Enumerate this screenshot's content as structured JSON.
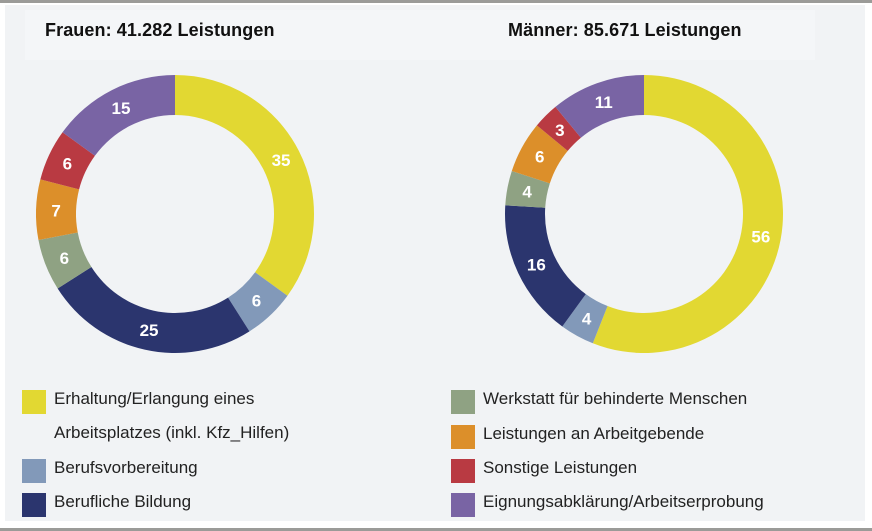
{
  "chart_data": [
    {
      "type": "pie",
      "variant": "donut",
      "title": "Frauen: 41.282 Leistungen",
      "categories": [
        "Erhaltung/Erlangung eines Arbeitsplatzes (inkl. Kfz_Hilfen)",
        "Berufsvorbereitung",
        "Berufliche Bildung",
        "Werkstatt für behinderte Menschen",
        "Leistungen an Arbeitgebende",
        "Sonstige Leistungen",
        "Eignungsabklärung/Arbeitserprobung"
      ],
      "values": [
        35,
        6,
        25,
        6,
        7,
        6,
        15
      ]
    },
    {
      "type": "pie",
      "variant": "donut",
      "title": "Männer: 85.671 Leistungen",
      "categories": [
        "Erhaltung/Erlangung eines Arbeitsplatzes (inkl. Kfz_Hilfen)",
        "Berufsvorbereitung",
        "Berufliche Bildung",
        "Werkstatt für behinderte Menschen",
        "Leistungen an Arbeitgebende",
        "Sonstige Leistungen",
        "Eignungsabklärung/Arbeitserprobung"
      ],
      "values": [
        56,
        4,
        16,
        4,
        6,
        3,
        11
      ]
    }
  ],
  "colors": [
    "#e2d832",
    "#8299b9",
    "#2b356e",
    "#8fa283",
    "#dc8f2a",
    "#b93a42",
    "#7964a4"
  ],
  "legend": {
    "placement": "bottom",
    "items": [
      {
        "label": "Erhaltung/Erlangung eines Arbeitsplatzes (inkl. Kfz_Hilfen)"
      },
      {
        "label": "Berufsvorbereitung"
      },
      {
        "label": "Berufliche Bildung"
      },
      {
        "label": "Werkstatt für behinderte Menschen"
      },
      {
        "label": "Leistungen an Arbeitgebende"
      },
      {
        "label": "Sonstige Leistungen"
      },
      {
        "label": "Eignungsabklärung/Arbeitserprobung"
      }
    ]
  }
}
